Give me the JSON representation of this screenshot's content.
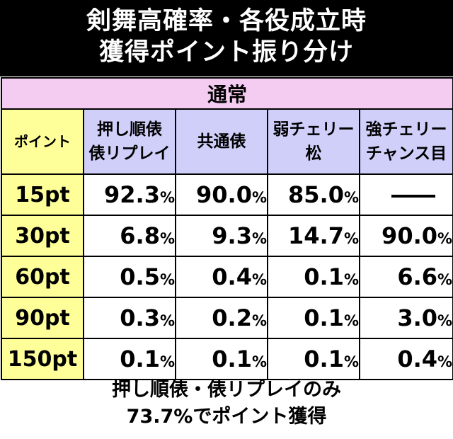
{
  "title": {
    "line1": "剣舞高確率・各役成立時",
    "line2": "獲得ポイント振り分け"
  },
  "section_label": "通常",
  "headers": {
    "point": "ポイント",
    "col1": [
      "押し順俵",
      "俵リプレイ"
    ],
    "col2": "共通俵",
    "col3": [
      "弱チェリー",
      "松"
    ],
    "col4": [
      "強チェリー",
      "チャンス目"
    ]
  },
  "percent_sign": "%",
  "rows": [
    {
      "pt": "15pt",
      "values": [
        "92.3",
        "90.0",
        "85.0",
        "—"
      ]
    },
    {
      "pt": "30pt",
      "values": [
        "6.8",
        "9.3",
        "14.7",
        "90.0"
      ]
    },
    {
      "pt": "60pt",
      "values": [
        "0.5",
        "0.4",
        "0.1",
        "6.6"
      ]
    },
    {
      "pt": "90pt",
      "values": [
        "0.3",
        "0.2",
        "0.1",
        "3.0"
      ]
    },
    {
      "pt": "150pt",
      "values": [
        "0.1",
        "0.1",
        "0.1",
        "0.4"
      ]
    }
  ],
  "footer": {
    "line1": "押し順俵・俵リプレイのみ",
    "line2": "73.7%でポイント獲得"
  },
  "colors": {
    "section_bg": "#f4ccf2",
    "header_bg": "#cfcffa",
    "point_bg": "#ffff99",
    "title_bg": "#000000"
  }
}
